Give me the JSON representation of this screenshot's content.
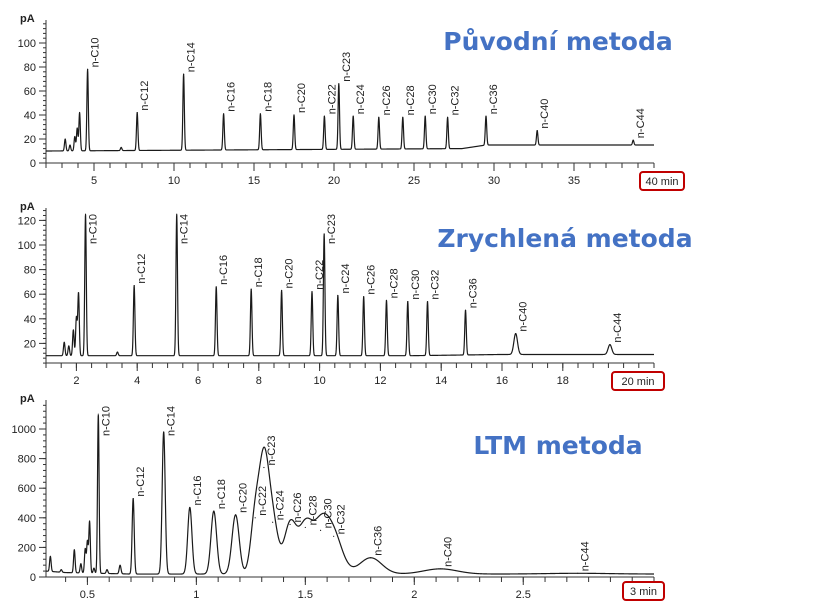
{
  "colors": {
    "title": "#4472C4",
    "trace": "#1a1a1a",
    "highlight_box": "#C00000"
  },
  "chart_data": [
    {
      "type": "line",
      "title": "Původní metoda",
      "ylabel": "pA",
      "xlabel": "min",
      "xlim": [
        2,
        40
      ],
      "ylim": [
        0,
        120
      ],
      "xticks": [
        5,
        10,
        15,
        20,
        25,
        30,
        35
      ],
      "xtick_labels": [
        "5",
        "10",
        "15",
        "20",
        "25",
        "30",
        "35"
      ],
      "x_end_label": "40 min",
      "yticks": [
        0,
        20,
        40,
        60,
        80,
        100
      ],
      "ytick_labels": [
        "0",
        "20",
        "40",
        "60",
        "80",
        "100"
      ],
      "baseline": [
        [
          2,
          10
        ],
        [
          28,
          12
        ],
        [
          29.5,
          15
        ],
        [
          40,
          15
        ]
      ],
      "minor_peaks": [
        [
          3.2,
          20
        ],
        [
          3.5,
          15
        ],
        [
          3.8,
          22
        ],
        [
          3.95,
          29
        ],
        [
          4.1,
          42
        ],
        [
          6.7,
          13
        ]
      ],
      "peaks": [
        {
          "name": "n-C10",
          "rt": 4.6,
          "height": 78
        },
        {
          "name": "n-C12",
          "rt": 7.7,
          "height": 42
        },
        {
          "name": "n-C14",
          "rt": 10.6,
          "height": 74
        },
        {
          "name": "n-C16",
          "rt": 13.1,
          "height": 41
        },
        {
          "name": "n-C18",
          "rt": 15.4,
          "height": 41
        },
        {
          "name": "n-C20",
          "rt": 17.5,
          "height": 40
        },
        {
          "name": "n-C22",
          "rt": 19.4,
          "height": 39
        },
        {
          "name": "n-C23",
          "rt": 20.3,
          "height": 66
        },
        {
          "name": "n-C24",
          "rt": 21.2,
          "height": 39
        },
        {
          "name": "n-C26",
          "rt": 22.8,
          "height": 38
        },
        {
          "name": "n-C28",
          "rt": 24.3,
          "height": 38
        },
        {
          "name": "n-C30",
          "rt": 25.7,
          "height": 39
        },
        {
          "name": "n-C32",
          "rt": 27.1,
          "height": 38
        },
        {
          "name": "n-C36",
          "rt": 29.5,
          "height": 39
        },
        {
          "name": "n-C40",
          "rt": 32.7,
          "height": 27
        },
        {
          "name": "n-C44",
          "rt": 38.7,
          "height": 19
        }
      ]
    },
    {
      "type": "line",
      "title": "Zrychlená metoda",
      "ylabel": "pA",
      "xlabel": "min",
      "xlim": [
        1,
        21
      ],
      "ylim": [
        4,
        130
      ],
      "xticks": [
        2,
        4,
        6,
        8,
        10,
        12,
        14,
        16,
        18
      ],
      "xtick_labels": [
        "2",
        "4",
        "6",
        "8",
        "10",
        "12",
        "14",
        "16",
        "18"
      ],
      "x_end_label": "20 min",
      "yticks": [
        20,
        40,
        60,
        80,
        100,
        120
      ],
      "ytick_labels": [
        "20",
        "40",
        "60",
        "80",
        "100",
        "120"
      ],
      "baseline": [
        [
          1,
          10
        ],
        [
          13,
          10
        ],
        [
          16,
          11
        ],
        [
          21,
          11
        ]
      ],
      "minor_peaks": [
        [
          1.6,
          21
        ],
        [
          1.75,
          18
        ],
        [
          1.9,
          31
        ],
        [
          2.0,
          41
        ],
        [
          2.07,
          61
        ],
        [
          3.35,
          13
        ]
      ],
      "peaks": [
        {
          "name": "n-C10",
          "rt": 2.3,
          "height": 125
        },
        {
          "name": "n-C12",
          "rt": 3.9,
          "height": 67
        },
        {
          "name": "n-C14",
          "rt": 5.3,
          "height": 125
        },
        {
          "name": "n-C16",
          "rt": 6.6,
          "height": 66
        },
        {
          "name": "n-C18",
          "rt": 7.75,
          "height": 64
        },
        {
          "name": "n-C20",
          "rt": 8.75,
          "height": 63
        },
        {
          "name": "n-C22",
          "rt": 9.75,
          "height": 62
        },
        {
          "name": "n-C23",
          "rt": 10.15,
          "height": 109
        },
        {
          "name": "n-C24",
          "rt": 10.6,
          "height": 59
        },
        {
          "name": "n-C26",
          "rt": 11.45,
          "height": 58
        },
        {
          "name": "n-C28",
          "rt": 12.2,
          "height": 55
        },
        {
          "name": "n-C30",
          "rt": 12.9,
          "height": 54
        },
        {
          "name": "n-C32",
          "rt": 13.55,
          "height": 54
        },
        {
          "name": "n-C36",
          "rt": 14.8,
          "height": 47
        },
        {
          "name": "n-C40",
          "rt": 16.45,
          "height": 28
        },
        {
          "name": "n-C44",
          "rt": 19.55,
          "height": 19
        }
      ]
    },
    {
      "type": "line",
      "title": "LTM metoda",
      "ylabel": "pA",
      "xlabel": "min",
      "xlim": [
        0.31,
        3.1
      ],
      "ylim": [
        0,
        1200
      ],
      "xticks": [
        0.5,
        1,
        1.5,
        2,
        2.5
      ],
      "xtick_labels": [
        "0.5",
        "1",
        "1.5",
        "2",
        "2.5"
      ],
      "x_end_label": "3 min",
      "yticks": [
        0,
        200,
        400,
        600,
        800,
        1000
      ],
      "ytick_labels": [
        "0",
        "200",
        "400",
        "600",
        "800",
        "1000"
      ],
      "baseline": [
        [
          0.31,
          40
        ],
        [
          0.4,
          30
        ],
        [
          0.7,
          20
        ],
        [
          3.1,
          20
        ]
      ],
      "minor_peaks": [
        [
          0.33,
          140
        ],
        [
          0.38,
          50
        ],
        [
          0.44,
          185
        ],
        [
          0.47,
          90
        ],
        [
          0.49,
          190
        ],
        [
          0.5,
          240
        ],
        [
          0.51,
          375
        ],
        [
          0.53,
          60
        ],
        [
          0.59,
          50
        ],
        [
          0.65,
          80
        ]
      ],
      "peaks": [
        {
          "name": "n-C10",
          "rt": 0.55,
          "height": 1100
        },
        {
          "name": "n-C12",
          "rt": 0.71,
          "height": 530
        },
        {
          "name": "n-C14",
          "rt": 0.85,
          "height": 980
        },
        {
          "name": "n-C16",
          "rt": 0.97,
          "height": 470
        },
        {
          "name": "n-C18",
          "rt": 1.08,
          "height": 445
        },
        {
          "name": "n-C20",
          "rt": 1.18,
          "height": 420
        },
        {
          "name": "n-C22",
          "rt": 1.27,
          "height": 400
        },
        {
          "name": "n-C23",
          "rt": 1.31,
          "height": 740
        },
        {
          "name": "n-C24",
          "rt": 1.35,
          "height": 370
        },
        {
          "name": "n-C26",
          "rt": 1.43,
          "height": 355
        },
        {
          "name": "n-C28",
          "rt": 1.5,
          "height": 335
        },
        {
          "name": "n-C30",
          "rt": 1.57,
          "height": 315
        },
        {
          "name": "n-C32",
          "rt": 1.63,
          "height": 275
        },
        {
          "name": "n-C36",
          "rt": 1.8,
          "height": 130
        },
        {
          "name": "n-C40",
          "rt": 2.12,
          "height": 55
        },
        {
          "name": "n-C44",
          "rt": 2.75,
          "height": 25
        }
      ]
    }
  ]
}
